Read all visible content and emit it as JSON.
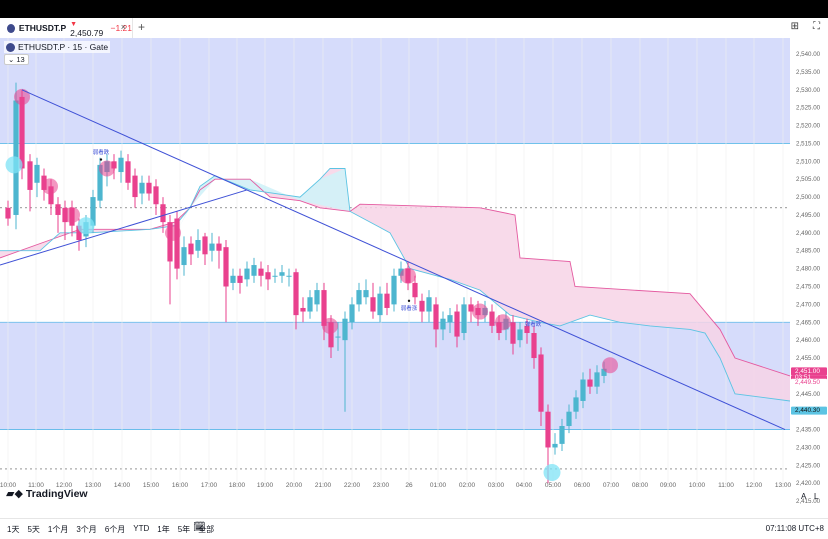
{
  "tab": {
    "symbol": "ETHUSDT.P",
    "arrow": "▼",
    "price": "2,450.79",
    "change": "−1.21",
    "close": "×",
    "add": "+"
  },
  "legend": {
    "title": "ETHUSDT.P · 15 · Gate",
    "badge": "⌄ 13"
  },
  "price_axis": [
    "2,540.00",
    "2,535.00",
    "2,530.00",
    "2,525.00",
    "2,520.00",
    "2,515.00",
    "2,510.00",
    "2,505.00",
    "2,500.00",
    "2,495.00",
    "2,490.00",
    "2,485.00",
    "2,480.00",
    "2,475.00",
    "2,470.00",
    "2,465.00",
    "2,460.00",
    "2,455.00",
    "2,445.00",
    "2,435.00",
    "2,430.00",
    "2,425.00",
    "2,420.00",
    "2,415.00"
  ],
  "price_labels": {
    "current": "2,451.00",
    "countdown": "03:51",
    "second": "2,449.50",
    "blue": "2,440.30"
  },
  "time_axis": [
    "10:00",
    "11:00",
    "12:00",
    "13:00",
    "14:00",
    "15:00",
    "16:00",
    "17:00",
    "18:00",
    "19:00",
    "20:00",
    "21:00",
    "22:00",
    "23:00",
    "26",
    "01:00",
    "02:00",
    "03:00",
    "04:00",
    "05:00",
    "06:00",
    "07:00",
    "08:00",
    "09:00",
    "10:00",
    "11:00",
    "12:00",
    "13:00"
  ],
  "annotations": {
    "a1": "弱看跌",
    "a2": "弱看涨",
    "a3": "弹看跌"
  },
  "branding": {
    "name": "TradingView",
    "a": "A",
    "l": "L"
  },
  "periods": [
    "1天",
    "5天",
    "1个月",
    "3个月",
    "6个月",
    "YTD",
    "1年",
    "5年",
    "全部"
  ],
  "clock": "07:11:08 UTC+8",
  "colors": {
    "up": "#4db6cf",
    "down": "#e9418e",
    "trend": "#3f51d6",
    "zone": "#d6dcfb",
    "cloud_pink": "#f7d3e6",
    "cloud_cyan": "#d0f2f8"
  }
}
